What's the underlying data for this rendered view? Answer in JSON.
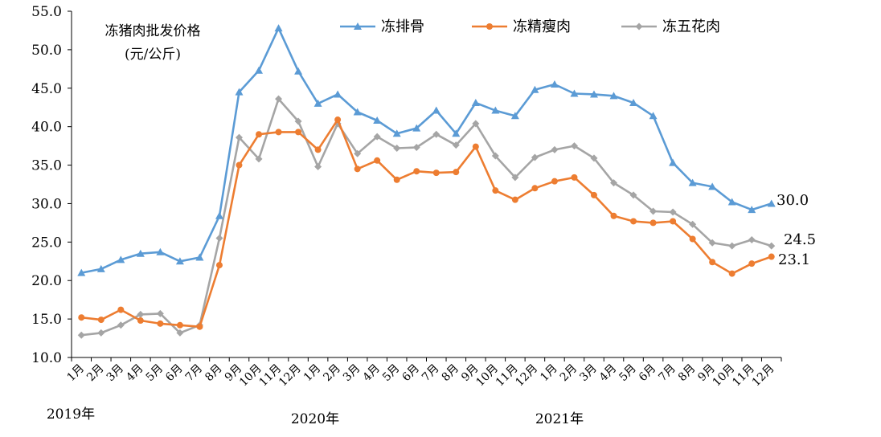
{
  "chart_data": {
    "type": "line",
    "unit_label": [
      "冻猪肉批发价格",
      "(元/公斤)"
    ],
    "ylim": [
      10,
      55
    ],
    "yticks": [
      "10.0",
      "15.0",
      "20.0",
      "25.0",
      "30.0",
      "35.0",
      "40.0",
      "45.0",
      "50.0",
      "55.0"
    ],
    "categories": [
      "1月",
      "2月",
      "3月",
      "4月",
      "5月",
      "6月",
      "7月",
      "8月",
      "9月",
      "10月",
      "11月",
      "12月",
      "1月",
      "2月",
      "3月",
      "4月",
      "5月",
      "6月",
      "7月",
      "8月",
      "9月",
      "10月",
      "11月",
      "12月",
      "1月",
      "2月",
      "3月",
      "4月",
      "5月",
      "6月",
      "7月",
      "8月",
      "9月",
      "10月",
      "11月",
      "12月"
    ],
    "years": [
      "2019年",
      "2020年",
      "2021年"
    ],
    "legend_position": "top",
    "grid": false,
    "series": [
      {
        "name": "冻排骨",
        "color": "#5B9BD5",
        "marker": "triangle",
        "values": [
          21.0,
          21.5,
          22.7,
          23.5,
          23.7,
          22.5,
          23.0,
          28.4,
          44.5,
          47.3,
          52.8,
          47.2,
          43.0,
          44.2,
          41.9,
          40.8,
          39.1,
          39.8,
          42.1,
          39.1,
          43.1,
          42.1,
          41.4,
          44.8,
          45.5,
          44.3,
          44.2,
          44.0,
          43.1,
          41.4,
          35.3,
          32.7,
          32.2,
          30.2,
          29.2,
          30.0
        ],
        "end_label": "30.0"
      },
      {
        "name": "冻精瘦肉",
        "color": "#ED7D31",
        "marker": "circle",
        "values": [
          15.2,
          14.9,
          16.2,
          14.8,
          14.4,
          14.2,
          14.0,
          22.0,
          35.0,
          39.0,
          39.3,
          39.3,
          37.0,
          40.9,
          34.5,
          35.6,
          33.1,
          34.2,
          34.0,
          34.1,
          37.4,
          31.7,
          30.5,
          32.0,
          32.9,
          33.4,
          31.1,
          28.4,
          27.7,
          27.5,
          27.7,
          25.4,
          22.4,
          20.9,
          22.2,
          23.1
        ],
        "end_label": "23.1"
      },
      {
        "name": "冻五花肉",
        "color": "#A5A5A5",
        "marker": "diamond",
        "values": [
          12.9,
          13.2,
          14.2,
          15.6,
          15.7,
          13.2,
          14.2,
          25.5,
          38.6,
          35.8,
          43.6,
          40.7,
          34.8,
          40.4,
          36.5,
          38.7,
          37.2,
          37.3,
          39.0,
          37.6,
          40.4,
          36.2,
          33.4,
          36.0,
          37.0,
          37.5,
          35.9,
          32.7,
          31.1,
          29.0,
          28.9,
          27.3,
          24.9,
          24.5,
          25.3,
          24.5
        ],
        "end_label": "24.5"
      }
    ]
  }
}
